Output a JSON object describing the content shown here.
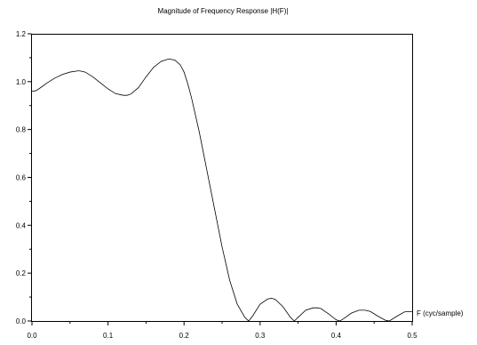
{
  "chart_data": {
    "type": "line",
    "title": "Magnitude of Frequency Response |H(F)|",
    "xlabel": "F (cyc/sample)",
    "ylabel": "",
    "xlim": [
      0,
      0.5
    ],
    "ylim": [
      0,
      1.2
    ],
    "grid": false,
    "x_ticks": [
      0.0,
      0.1,
      0.2,
      0.3,
      0.4,
      0.5
    ],
    "x_tick_labels": [
      "0.0",
      "0.1",
      "0.2",
      "0.3",
      "0.4",
      "0.5"
    ],
    "y_ticks": [
      0.0,
      0.2,
      0.4,
      0.6,
      0.8,
      1.0,
      1.2
    ],
    "y_tick_labels": [
      "0.0",
      "0.2",
      "0.4",
      "0.6",
      "0.8",
      "1.0",
      "1.2"
    ],
    "series": [
      {
        "x": [
          0.0,
          0.005,
          0.01,
          0.02,
          0.03,
          0.04,
          0.05,
          0.06,
          0.063,
          0.07,
          0.08,
          0.09,
          0.1,
          0.11,
          0.12,
          0.125,
          0.13,
          0.14,
          0.15,
          0.16,
          0.17,
          0.18,
          0.188,
          0.195,
          0.2,
          0.205,
          0.21,
          0.22,
          0.23,
          0.24,
          0.25,
          0.26,
          0.27,
          0.28,
          0.285,
          0.29,
          0.3,
          0.31,
          0.315,
          0.32,
          0.33,
          0.34,
          0.345,
          0.35,
          0.36,
          0.37,
          0.375,
          0.38,
          0.39,
          0.4,
          0.405,
          0.41,
          0.42,
          0.43,
          0.438,
          0.445,
          0.455,
          0.465,
          0.47,
          0.48,
          0.49,
          0.5
        ],
        "y": [
          0.96,
          0.962,
          0.972,
          0.995,
          1.015,
          1.03,
          1.04,
          1.045,
          1.045,
          1.04,
          1.02,
          0.995,
          0.97,
          0.95,
          0.943,
          0.943,
          0.948,
          0.975,
          1.02,
          1.06,
          1.085,
          1.095,
          1.09,
          1.07,
          1.04,
          0.99,
          0.93,
          0.79,
          0.63,
          0.47,
          0.31,
          0.17,
          0.07,
          0.015,
          0.0,
          0.02,
          0.07,
          0.092,
          0.095,
          0.09,
          0.06,
          0.015,
          0.0,
          0.015,
          0.045,
          0.055,
          0.055,
          0.052,
          0.03,
          0.005,
          0.0,
          0.01,
          0.033,
          0.045,
          0.045,
          0.04,
          0.02,
          0.003,
          0.0,
          0.02,
          0.038,
          0.04
        ]
      }
    ]
  }
}
